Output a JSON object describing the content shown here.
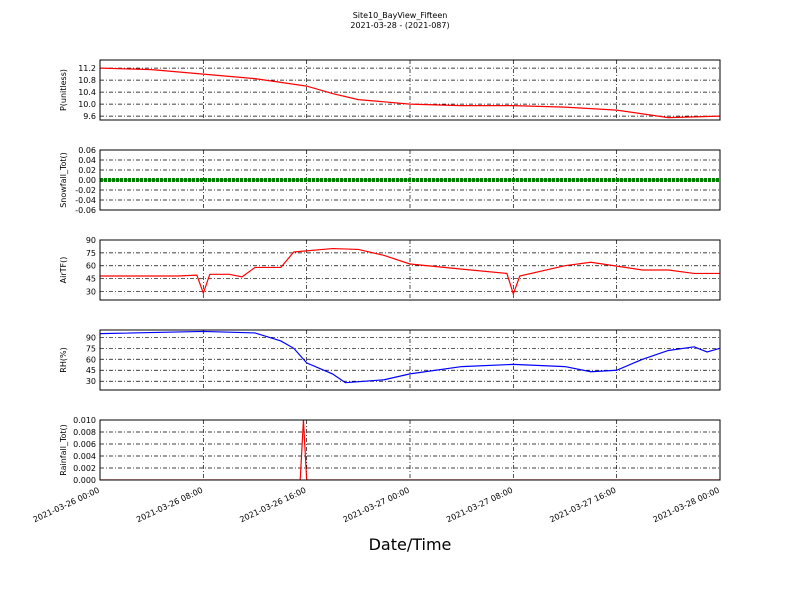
{
  "chart_data": [
    {
      "type": "line",
      "title": "Site10_BayView_Fifteen",
      "subtitle": "2021-03-28 - (2021-087)",
      "ylabel": "P(unitless)",
      "color": "#ff0000",
      "grid": true,
      "xlim": [
        "2021-03-26 00:00",
        "2021-03-28 00:00"
      ],
      "xticks": [
        "2021-03-26 00:00",
        "2021-03-26 08:00",
        "2021-03-26 16:00",
        "2021-03-27 00:00",
        "2021-03-27 08:00",
        "2021-03-27 16:00",
        "2021-03-28 00:00"
      ],
      "ylim": [
        9.47,
        11.47
      ],
      "yticks": [
        9.6,
        {
          "value": 10.0,
          "label": "10.0"
        },
        10.4,
        10.8,
        11.2
      ],
      "x": [
        "2021-03-26 00:00",
        "2021-03-26 04:00",
        "2021-03-26 08:00",
        "2021-03-26 12:00",
        "2021-03-26 16:00",
        "2021-03-26 18:00",
        "2021-03-26 20:00",
        "2021-03-27 00:00",
        "2021-03-27 04:00",
        "2021-03-27 08:00",
        "2021-03-27 12:00",
        "2021-03-27 16:00",
        "2021-03-27 20:00",
        "2021-03-28 00:00"
      ],
      "values": [
        11.2,
        11.15,
        11.0,
        10.85,
        10.6,
        10.35,
        10.15,
        10.0,
        9.95,
        9.95,
        9.9,
        9.8,
        9.55,
        9.6
      ]
    },
    {
      "type": "line",
      "ylabel": "Snowfall_Tot()",
      "color": "#008000",
      "grid": true,
      "xlim": [
        "2021-03-26 00:00",
        "2021-03-28 00:00"
      ],
      "xticks": [
        "2021-03-26 00:00",
        "2021-03-26 08:00",
        "2021-03-26 16:00",
        "2021-03-27 00:00",
        "2021-03-27 08:00",
        "2021-03-27 16:00",
        "2021-03-28 00:00"
      ],
      "ylim": [
        -0.06,
        0.06
      ],
      "yticks": [
        {
          "value": -0.06,
          "label": "-0.06"
        },
        {
          "value": -0.04,
          "label": "-0.04"
        },
        {
          "value": -0.02,
          "label": "-0.02"
        },
        {
          "value": 0,
          "label": "0.00"
        },
        {
          "value": 0.02,
          "label": "0.02"
        },
        {
          "value": 0.04,
          "label": "0.04"
        },
        {
          "value": 0.06,
          "label": "0.06"
        }
      ],
      "x": [
        "2021-03-26 00:00",
        "2021-03-26 12:00",
        "2021-03-27 00:00",
        "2021-03-27 12:00",
        "2021-03-28 00:00"
      ],
      "values": [
        0,
        0,
        0,
        0,
        0
      ]
    },
    {
      "type": "line",
      "ylabel": "AirTF()",
      "color": "#ff0000",
      "grid": true,
      "xlim": [
        "2021-03-26 00:00",
        "2021-03-28 00:00"
      ],
      "xticks": [
        "2021-03-26 00:00",
        "2021-03-26 08:00",
        "2021-03-26 16:00",
        "2021-03-27 00:00",
        "2021-03-27 08:00",
        "2021-03-27 16:00",
        "2021-03-28 00:00"
      ],
      "ylim": [
        20,
        90
      ],
      "yticks": [
        30,
        45,
        60,
        75,
        90
      ],
      "x": [
        "2021-03-26 00:00",
        "2021-03-26 06:00",
        "2021-03-26 07:30",
        "2021-03-26 08:00",
        "2021-03-26 08:30",
        "2021-03-26 10:00",
        "2021-03-26 11:00",
        "2021-03-26 12:00",
        "2021-03-26 14:00",
        "2021-03-26 15:00",
        "2021-03-26 18:00",
        "2021-03-26 20:00",
        "2021-03-26 22:00",
        "2021-03-27 00:00",
        "2021-03-27 04:00",
        "2021-03-27 07:30",
        "2021-03-27 08:00",
        "2021-03-27 08:30",
        "2021-03-27 12:00",
        "2021-03-27 14:00",
        "2021-03-27 18:00",
        "2021-03-27 20:00",
        "2021-03-27 22:00",
        "2021-03-28 00:00"
      ],
      "values": [
        48,
        48,
        49,
        28,
        50,
        50,
        47,
        58,
        58,
        76,
        80,
        79,
        72,
        62,
        56,
        51,
        27,
        48,
        60,
        64,
        55,
        55,
        51,
        51
      ]
    },
    {
      "type": "line",
      "ylabel": "RH(%)",
      "color": "#0000ff",
      "grid": true,
      "xlim": [
        "2021-03-26 00:00",
        "2021-03-28 00:00"
      ],
      "xticks": [
        "2021-03-26 00:00",
        "2021-03-26 08:00",
        "2021-03-26 16:00",
        "2021-03-27 00:00",
        "2021-03-27 08:00",
        "2021-03-27 16:00",
        "2021-03-28 00:00"
      ],
      "ylim": [
        18,
        100
      ],
      "yticks": [
        30,
        45,
        60,
        75,
        90
      ],
      "x": [
        "2021-03-26 00:00",
        "2021-03-26 08:00",
        "2021-03-26 12:00",
        "2021-03-26 14:00",
        "2021-03-26 15:00",
        "2021-03-26 16:00",
        "2021-03-26 18:00",
        "2021-03-26 19:00",
        "2021-03-26 22:00",
        "2021-03-27 00:00",
        "2021-03-27 04:00",
        "2021-03-27 08:00",
        "2021-03-27 12:00",
        "2021-03-27 14:00",
        "2021-03-27 16:00",
        "2021-03-27 18:00",
        "2021-03-27 20:00",
        "2021-03-27 22:00",
        "2021-03-27 23:00",
        "2021-03-28 00:00"
      ],
      "values": [
        95,
        98,
        96,
        85,
        75,
        55,
        40,
        28,
        32,
        40,
        50,
        53,
        50,
        43,
        45,
        60,
        72,
        77,
        70,
        75
      ]
    },
    {
      "type": "line",
      "ylabel": "Rainfall_Tot()",
      "xlabel": "Date/Time",
      "color": "#ff0000",
      "grid": true,
      "xlim": [
        "2021-03-26 00:00",
        "2021-03-28 00:00"
      ],
      "xticks": [
        "2021-03-26 00:00",
        "2021-03-26 08:00",
        "2021-03-26 16:00",
        "2021-03-27 00:00",
        "2021-03-27 08:00",
        "2021-03-27 16:00",
        "2021-03-28 00:00"
      ],
      "ylim": [
        0,
        0.01
      ],
      "yticks": [
        {
          "value": 0,
          "label": "0.000"
        },
        {
          "value": 0.002,
          "label": "0.002"
        },
        {
          "value": 0.004,
          "label": "0.004"
        },
        {
          "value": 0.006,
          "label": "0.006"
        },
        {
          "value": 0.008,
          "label": "0.008"
        },
        {
          "value": 0.01,
          "label": "0.010"
        }
      ],
      "x": [
        "2021-03-26 00:00",
        "2021-03-26 15:30",
        "2021-03-26 15:45",
        "2021-03-26 16:00",
        "2021-03-28 00:00"
      ],
      "values": [
        0,
        0,
        0.01,
        0,
        0
      ]
    }
  ]
}
